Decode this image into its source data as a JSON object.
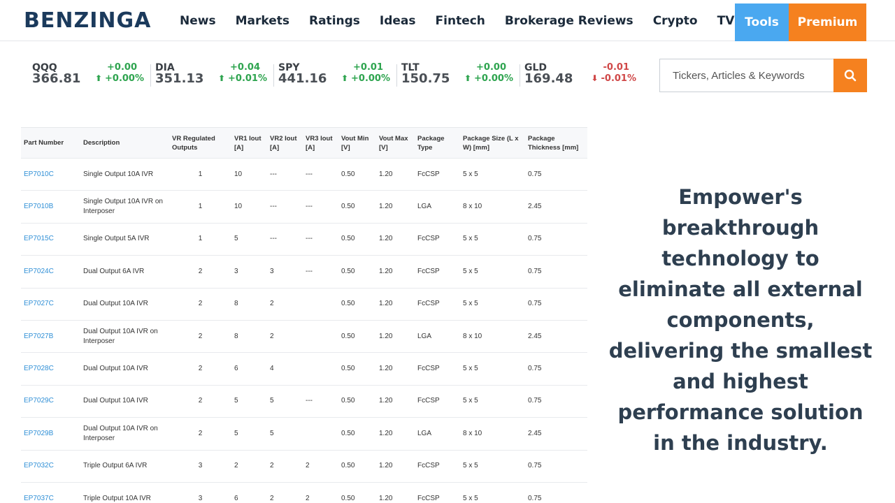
{
  "header": {
    "logo": "BENZINGA",
    "nav": [
      "News",
      "Markets",
      "Ratings",
      "Ideas",
      "Fintech",
      "Brokerage Reviews",
      "Crypto",
      "TV"
    ],
    "tools": "Tools",
    "premium": "Premium"
  },
  "tickers": [
    {
      "symbol": "QQQ",
      "price": "366.81",
      "change": "+0.00",
      "percent": "+0.00%",
      "direction": "up"
    },
    {
      "symbol": "DIA",
      "price": "351.13",
      "change": "+0.04",
      "percent": "+0.01%",
      "direction": "up"
    },
    {
      "symbol": "SPY",
      "price": "441.16",
      "change": "+0.01",
      "percent": "+0.00%",
      "direction": "up"
    },
    {
      "symbol": "TLT",
      "price": "150.75",
      "change": "+0.00",
      "percent": "+0.00%",
      "direction": "up"
    },
    {
      "symbol": "GLD",
      "price": "169.48",
      "change": "-0.01",
      "percent": "-0.01%",
      "direction": "down"
    }
  ],
  "search": {
    "placeholder": "Tickers, Articles & Keywords",
    "icon": "search-icon"
  },
  "table": {
    "headers": [
      "Part Number",
      "Description",
      "VR Regulated Outputs",
      "VR1 Iout [A]",
      "VR2 Iout [A]",
      "VR3 Iout [A]",
      "Vout Min [V]",
      "Vout Max [V]",
      "Package Type",
      "Package Size (L x W) [mm]",
      "Package Thickness [mm]"
    ],
    "rows": [
      [
        "EP7010C",
        "Single Output 10A IVR",
        "1",
        "10",
        "---",
        "---",
        "0.50",
        "1.20",
        "FcCSP",
        "5 x 5",
        "0.75"
      ],
      [
        "EP7010B",
        "Single Output 10A IVR on Interposer",
        "1",
        "10",
        "---",
        "---",
        "0.50",
        "1.20",
        "LGA",
        "8 x 10",
        "2.45"
      ],
      [
        "EP7015C",
        "Single Output 5A IVR",
        "1",
        "5",
        "---",
        "---",
        "0.50",
        "1.20",
        "FcCSP",
        "5 x 5",
        "0.75"
      ],
      [
        "EP7024C",
        "Dual Output 6A IVR",
        "2",
        "3",
        "3",
        "---",
        "0.50",
        "1.20",
        "FcCSP",
        "5 x 5",
        "0.75"
      ],
      [
        "EP7027C",
        "Dual Output 10A IVR",
        "2",
        "8",
        "2",
        "",
        "0.50",
        "1.20",
        "FcCSP",
        "5 x 5",
        "0.75"
      ],
      [
        "EP7027B",
        "Dual Output 10A IVR on Interposer",
        "2",
        "8",
        "2",
        "",
        "0.50",
        "1.20",
        "LGA",
        "8 x 10",
        "2.45"
      ],
      [
        "EP7028C",
        "Dual Output 10A IVR",
        "2",
        "6",
        "4",
        "",
        "0.50",
        "1.20",
        "FcCSP",
        "5 x 5",
        "0.75"
      ],
      [
        "EP7029C",
        "Dual Output 10A IVR",
        "2",
        "5",
        "5",
        "---",
        "0.50",
        "1.20",
        "FcCSP",
        "5 x 5",
        "0.75"
      ],
      [
        "EP7029B",
        "Dual Output 10A IVR on Interposer",
        "2",
        "5",
        "5",
        "",
        "0.50",
        "1.20",
        "LGA",
        "8 x 10",
        "2.45"
      ],
      [
        "EP7032C",
        "Triple Output 6A IVR",
        "3",
        "2",
        "2",
        "2",
        "0.50",
        "1.20",
        "FcCSP",
        "5 x 5",
        "0.75"
      ],
      [
        "EP7037C",
        "Triple Output 10A IVR",
        "3",
        "6",
        "2",
        "2",
        "0.50",
        "1.20",
        "FcCSP",
        "5 x 5",
        "0.75"
      ]
    ]
  },
  "promo": "Empower's breakthrough technology to eliminate all external components, delivering the smallest and highest performance solution in the industry."
}
